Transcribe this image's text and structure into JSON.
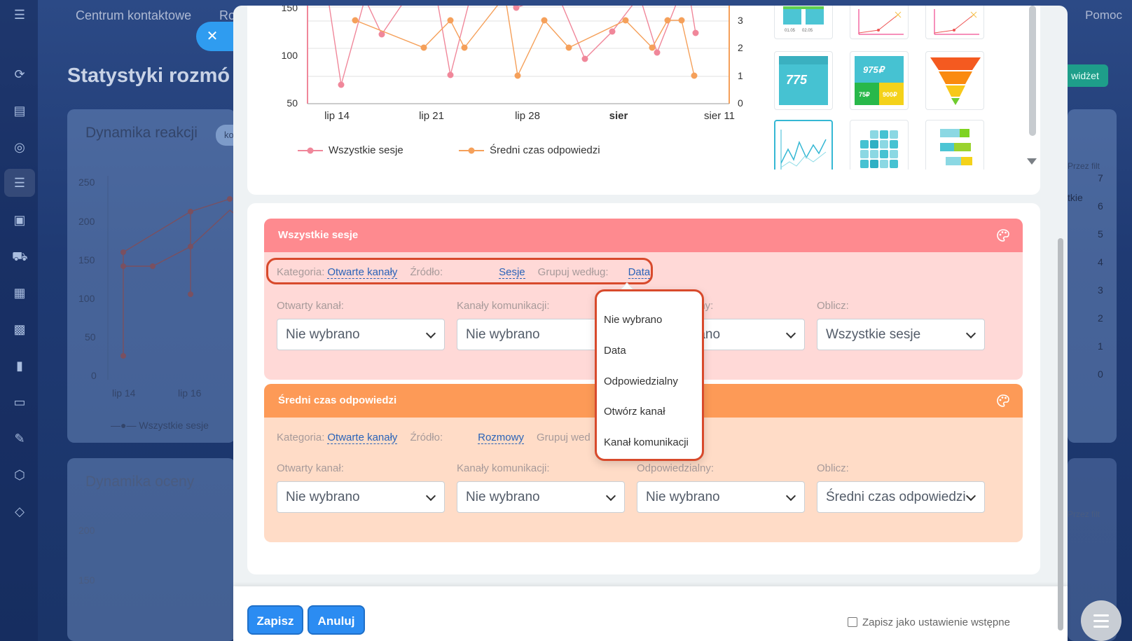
{
  "background": {
    "topbar": {
      "item1": "Centrum kontaktowe",
      "item2": "Ro",
      "help": "Pomoc"
    },
    "page_title": "Statystyki rozmó",
    "widget_button": "widżet",
    "card1": {
      "title": "Dynamika reakcji",
      "chip": "ko",
      "y_ticks": [
        "250",
        "200",
        "150",
        "100",
        "50",
        "0"
      ],
      "x_ticks": [
        "lip 14",
        "lip 16"
      ],
      "legend": "Wszystkie sesje",
      "right_ticks": [
        "7",
        "6",
        "5",
        "4",
        "3",
        "2",
        "1",
        "0"
      ],
      "right_filter": "Przez filt",
      "right_label": "tkie"
    },
    "card2": {
      "title": "Dynamika oceny",
      "chip": "ko",
      "y_ticks": [
        "200",
        "150"
      ],
      "right_filter": "Przez filt"
    }
  },
  "chart": {
    "left_y_ticks": [
      "150",
      "100",
      "50"
    ],
    "right_y_ticks": [
      "3",
      "2",
      "1",
      "0"
    ],
    "x_ticks": [
      "lip 14",
      "lip 21",
      "lip 28",
      "sier",
      "sier 11"
    ],
    "legend": [
      "Wszystkie sesje",
      "Średni czas odpowiedzi"
    ],
    "colors": {
      "series1": "#f0879a",
      "series2": "#f5a05a"
    }
  },
  "thumbnails": {
    "row1": [
      "bar-thumb",
      "line-thumb",
      "line-thumb"
    ],
    "row2": [
      "775",
      "975₽",
      "funnel-thumb"
    ],
    "row2_tiles": [
      "75₽",
      "900₽"
    ],
    "row3": [
      "line-thumb-selected",
      "grid-thumb",
      "bars-thumb"
    ]
  },
  "sessions": {
    "title": "Wszystkie sesje",
    "kategoria_label": "Kategoria:",
    "kategoria_value": "Otwarte kanały",
    "zrodlo_label": "Źródło:",
    "zrodlo_value": "Sesje",
    "grupuj_label": "Grupuj według:",
    "grupuj_value": "Data",
    "fields": [
      {
        "label": "Otwarty kanał:",
        "value": "Nie wybrano"
      },
      {
        "label": "Kanały komunikacji:",
        "value": "Nie wybrano"
      },
      {
        "label": "lny:",
        "value": "rano"
      },
      {
        "label": "Oblicz:",
        "value": "Wszystkie sesje"
      }
    ]
  },
  "response_time": {
    "title": "Średni czas odpowiedzi",
    "kategoria_label": "Kategoria:",
    "kategoria_value": "Otwarte kanały",
    "zrodlo_label": "Źródło:",
    "zrodlo_value": "Rozmowy",
    "grupuj_label": "Grupuj wed",
    "fields": [
      {
        "label": "Otwarty kanał:",
        "value": "Nie wybrano"
      },
      {
        "label": "Kanały komunikacji:",
        "value": "Nie wybrano"
      },
      {
        "label": "Odpowiedzialny:",
        "value": "Nie wybrano"
      },
      {
        "label": "Oblicz:",
        "value": "Średni czas odpowiedzi"
      }
    ]
  },
  "group_by_dropdown": [
    "Nie wybrano",
    "Data",
    "Odpowiedzialny",
    "Otwórz kanał",
    "Kanał komunikacji"
  ],
  "footer": {
    "save": "Zapisz",
    "cancel": "Anuluj",
    "preset_label": "Zapisz jako ustawienie wstępne"
  }
}
